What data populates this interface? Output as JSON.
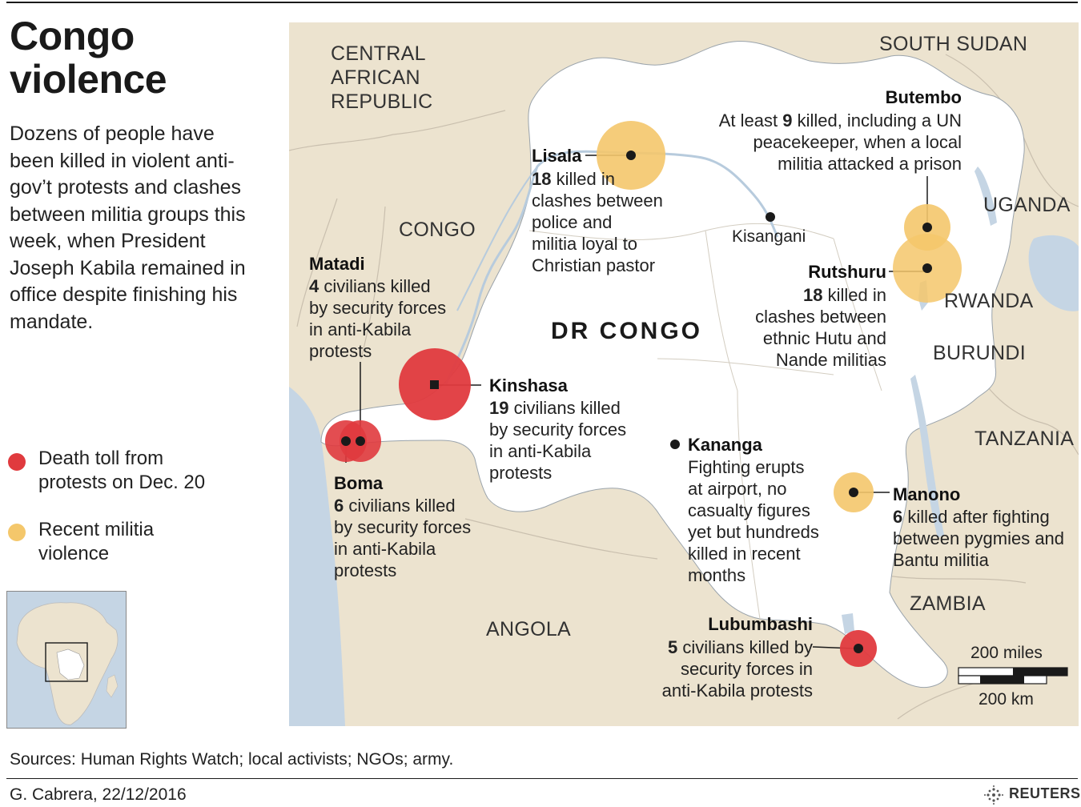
{
  "title_line1": "Congo",
  "title_line2": "violence",
  "description": "Dozens of people have been killed in violent anti-gov’t protests and clashes between militia groups this week, when President Joseph Kabila remained in office despite finishing his mandate.",
  "legend": {
    "red_label_1": "Death toll from",
    "red_label_2": "protests on Dec. 20",
    "yellow_label_1": "Recent militia",
    "yellow_label_2": "violence",
    "red_color": "#e03a3e",
    "yellow_color": "#f4c76b"
  },
  "countries": {
    "car_1": "CENTRAL",
    "car_2": "AFRICAN",
    "car_3": "REPUBLIC",
    "south_sudan": "SOUTH SUDAN",
    "uganda": "UGANDA",
    "rwanda": "RWANDA",
    "burundi": "BURUNDI",
    "tanzania": "TANZANIA",
    "zambia": "ZAMBIA",
    "angola": "ANGOLA",
    "congo": "CONGO",
    "drc": "DR CONGO"
  },
  "cities": {
    "kisangani": "Kisangani",
    "lisala": "Lisala",
    "butembo": "Butembo",
    "rutshuru": "Rutshuru",
    "matadi": "Matadi",
    "kinshasa": "Kinshasa",
    "boma": "Boma",
    "kananga": "Kananga",
    "manono": "Manono",
    "lubumbashi": "Lubumbashi"
  },
  "notes": {
    "lisala_num": "18",
    "lisala_1": " killed in",
    "lisala_2": "clashes between",
    "lisala_3": "police and",
    "lisala_4": "militia loyal to",
    "lisala_5": "Christian pastor",
    "butembo_pre": "At least ",
    "butembo_num": "9",
    "butembo_1": " killed, including a UN",
    "butembo_2": "peacekeeper, when a local",
    "butembo_3": "militia attacked a prison",
    "rutshuru_num": "18",
    "rutshuru_1": " killed in",
    "rutshuru_2": "clashes between",
    "rutshuru_3": "ethnic Hutu and",
    "rutshuru_4": "Nande militias",
    "matadi_num": "4",
    "matadi_1": " civilians killed",
    "matadi_2": "by security forces",
    "matadi_3": "in anti-Kabila",
    "matadi_4": "protests",
    "kinshasa_num": "19",
    "kinshasa_1": " civilians killed",
    "kinshasa_2": "by security forces",
    "kinshasa_3": "in anti-Kabila",
    "kinshasa_4": "protests",
    "boma_num": "6",
    "boma_1": " civilians killed",
    "boma_2": "by security forces",
    "boma_3": "in anti-Kabila",
    "boma_4": "protests",
    "kananga_1": "Fighting erupts",
    "kananga_2": "at airport, no",
    "kananga_3": "casualty figures",
    "kananga_4": "yet but hundreds",
    "kananga_5": "killed in recent",
    "kananga_6": "months",
    "manono_num": "6",
    "manono_1": " killed after fighting",
    "manono_2": "between pygmies and",
    "manono_3": "Bantu militia",
    "lubumbashi_num": "5",
    "lubumbashi_1": " civilians killed by",
    "lubumbashi_2": "security forces in",
    "lubumbashi_3": "anti-Kabila protests"
  },
  "scale": {
    "miles": "200 miles",
    "km": "200 km"
  },
  "sources": "Sources: Human Rights Watch; local activists; NGOs; army.",
  "credit": "G. Cabrera,  22/12/2016",
  "brand": "REUTERS",
  "colors": {
    "land": "#ece3cf",
    "drc": "#ffffff",
    "water": "#c5d5e4",
    "border": "#c9bfae"
  }
}
